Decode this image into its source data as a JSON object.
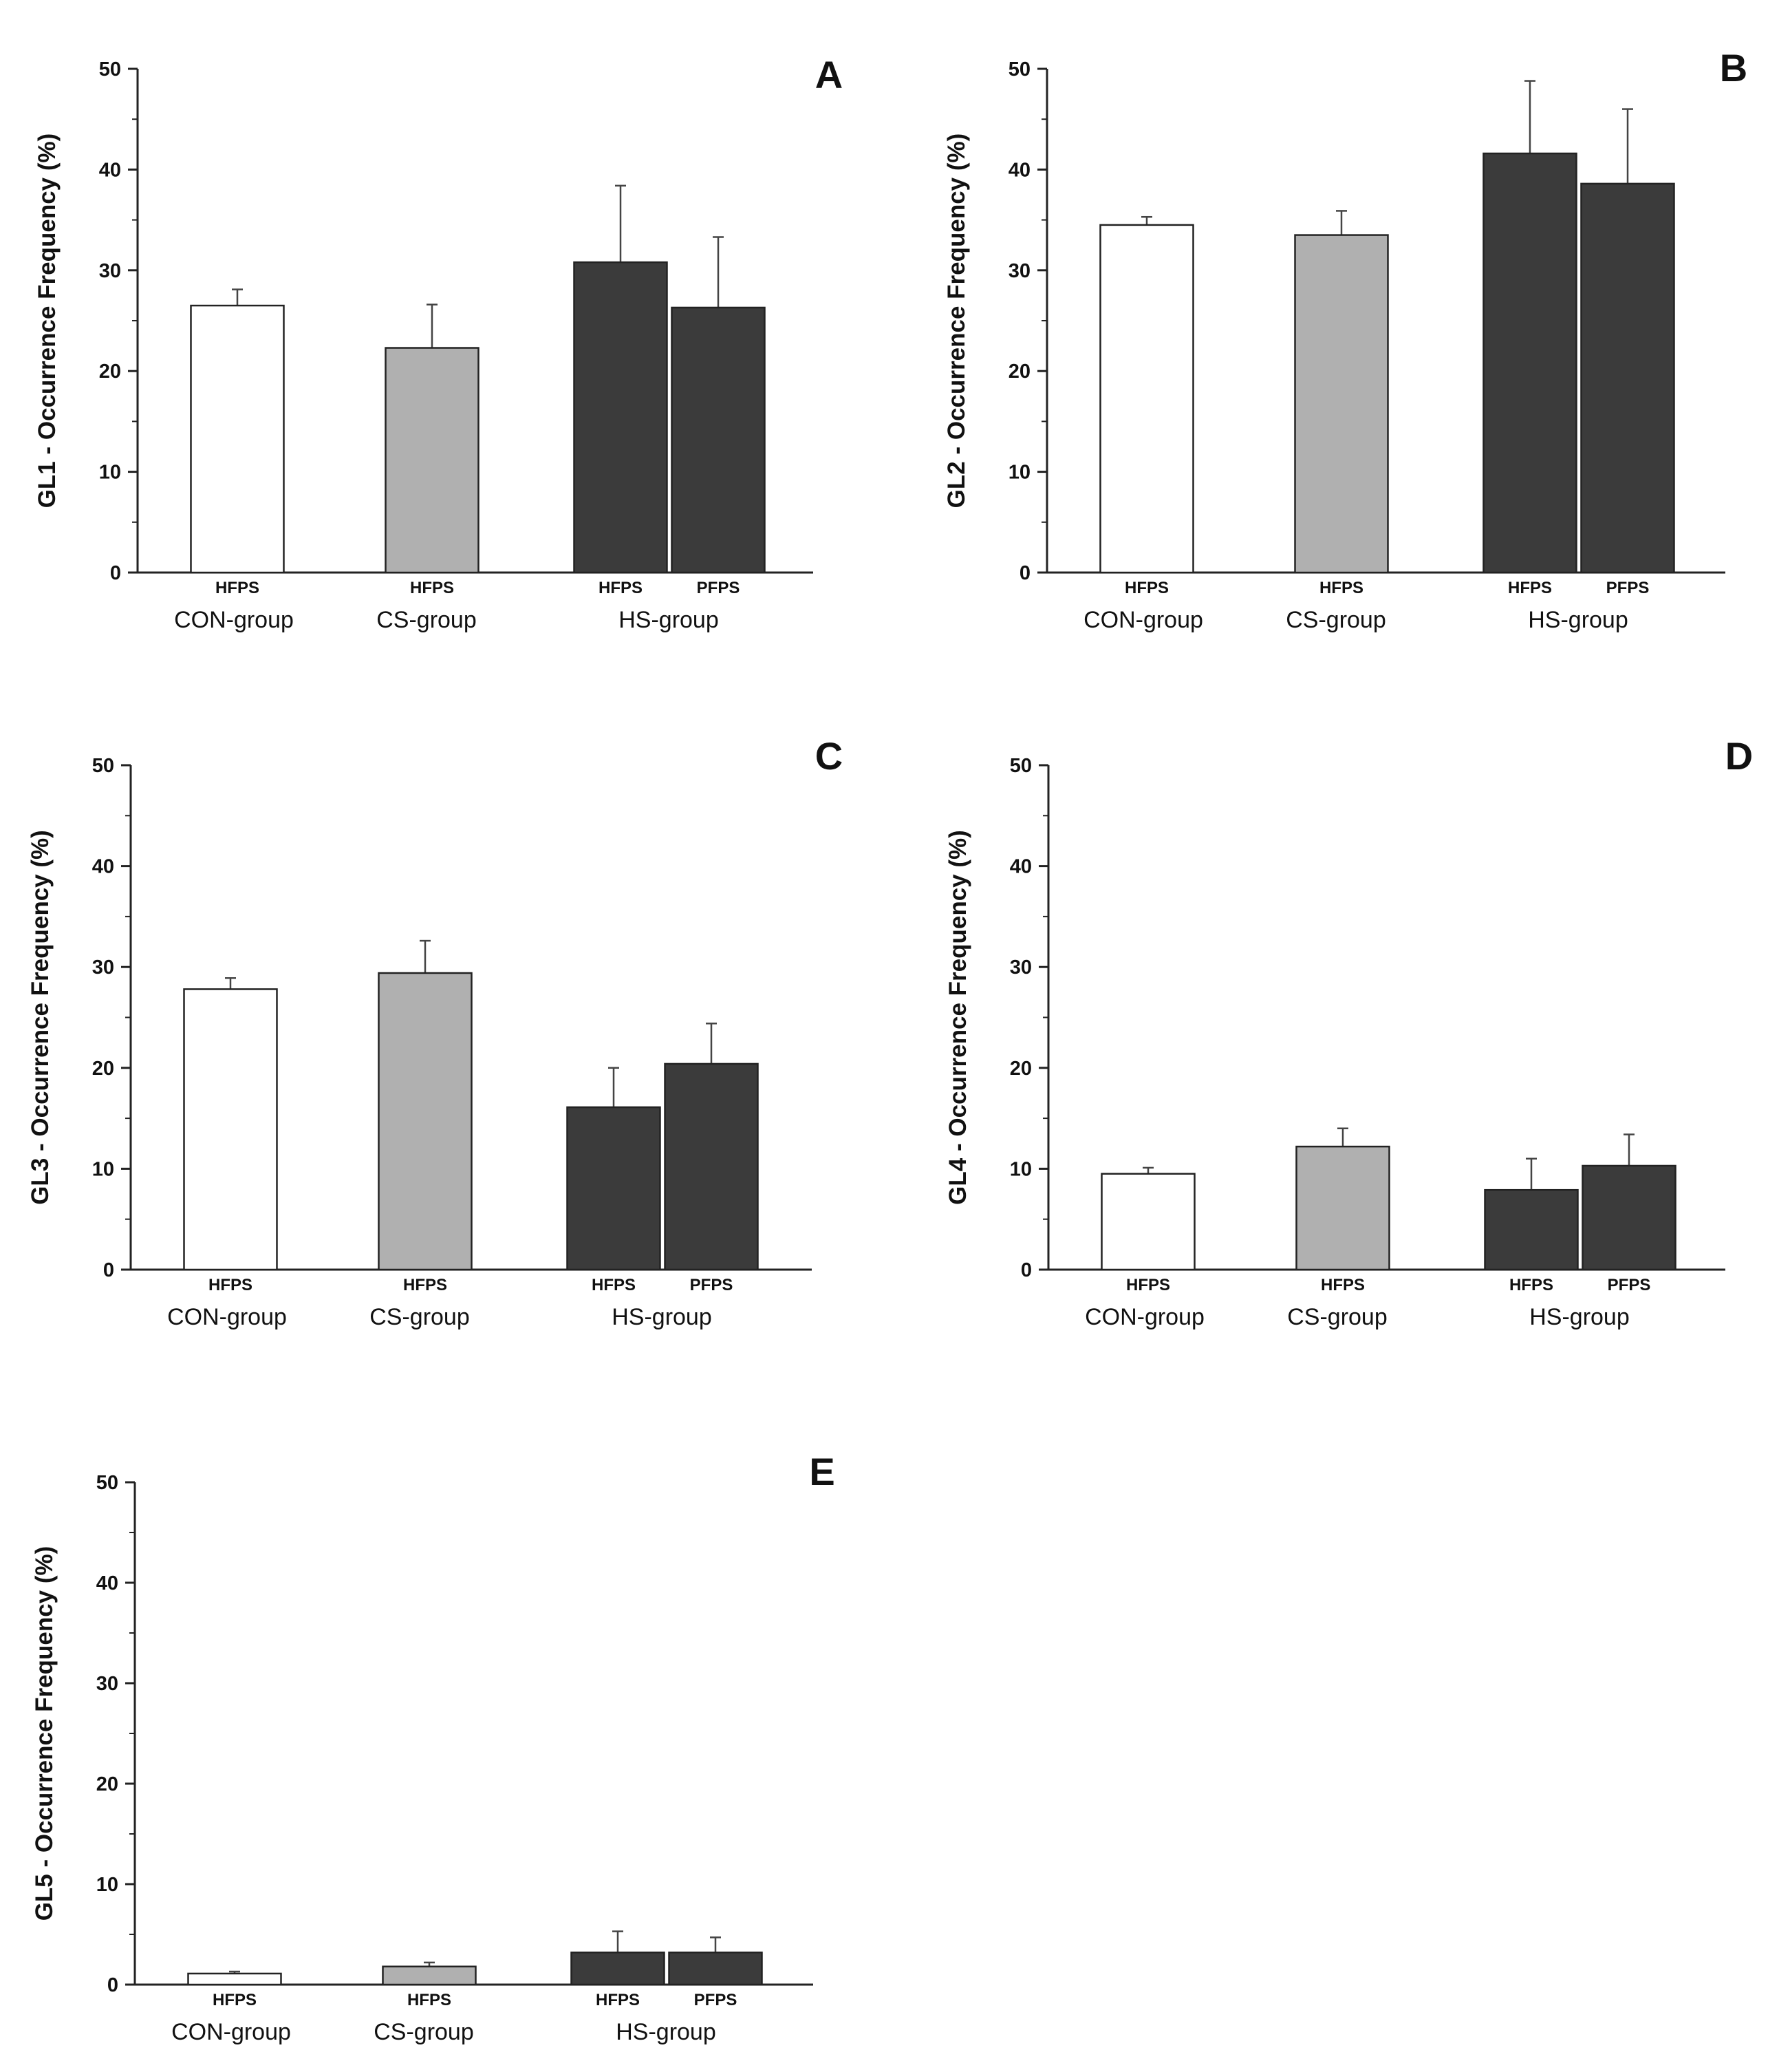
{
  "colors": {
    "CON-group": "#ffffff",
    "CS-group": "#b0b0b0",
    "HS-group": "#3b3b3b",
    "axis": "#222222",
    "bar_outline": "#222222",
    "error_bar": "#444444"
  },
  "chart_data": [
    {
      "panel": "A",
      "type": "bar",
      "ylabel": "GL1 - Occurrence Frequency (%)",
      "ylim": [
        0,
        50
      ],
      "yticks": [
        "0",
        "10",
        "20",
        "30",
        "40",
        "50"
      ],
      "groups": [
        "CON-group",
        "CS-group",
        "HS-group"
      ],
      "bars": [
        {
          "group": "CON-group",
          "label": "HFPS",
          "value": 26.5,
          "error": 1.6
        },
        {
          "group": "CS-group",
          "label": "HFPS",
          "value": 22.3,
          "error": 4.3
        },
        {
          "group": "HS-group",
          "label": "HFPS",
          "value": 30.8,
          "error": 7.6
        },
        {
          "group": "HS-group",
          "label": "PFPS",
          "value": 26.3,
          "error": 7.0
        }
      ]
    },
    {
      "panel": "B",
      "type": "bar",
      "ylabel": "GL2 - Occurrence Frequency (%)",
      "ylim": [
        0,
        50
      ],
      "yticks": [
        "0",
        "10",
        "20",
        "30",
        "40",
        "50"
      ],
      "groups": [
        "CON-group",
        "CS-group",
        "HS-group"
      ],
      "bars": [
        {
          "group": "CON-group",
          "label": "HFPS",
          "value": 34.5,
          "error": 0.8
        },
        {
          "group": "CS-group",
          "label": "HFPS",
          "value": 33.5,
          "error": 2.4
        },
        {
          "group": "HS-group",
          "label": "HFPS",
          "value": 41.6,
          "error": 7.2
        },
        {
          "group": "HS-group",
          "label": "PFPS",
          "value": 38.6,
          "error": 7.4
        }
      ]
    },
    {
      "panel": "C",
      "type": "bar",
      "ylabel": "GL3 - Occurrence Frequency (%)",
      "ylim": [
        0,
        50
      ],
      "yticks": [
        "0",
        "10",
        "20",
        "30",
        "40",
        "50"
      ],
      "groups": [
        "CON-group",
        "CS-group",
        "HS-group"
      ],
      "bars": [
        {
          "group": "CON-group",
          "label": "HFPS",
          "value": 27.8,
          "error": 1.1
        },
        {
          "group": "CS-group",
          "label": "HFPS",
          "value": 29.4,
          "error": 3.2
        },
        {
          "group": "HS-group",
          "label": "HFPS",
          "value": 16.1,
          "error": 3.9
        },
        {
          "group": "HS-group",
          "label": "PFPS",
          "value": 20.4,
          "error": 4.0
        }
      ]
    },
    {
      "panel": "D",
      "type": "bar",
      "ylabel": "GL4 - Occurrence Frequency (%)",
      "ylim": [
        0,
        50
      ],
      "yticks": [
        "0",
        "10",
        "20",
        "30",
        "40",
        "50"
      ],
      "groups": [
        "CON-group",
        "CS-group",
        "HS-group"
      ],
      "bars": [
        {
          "group": "CON-group",
          "label": "HFPS",
          "value": 9.5,
          "error": 0.6
        },
        {
          "group": "CS-group",
          "label": "HFPS",
          "value": 12.2,
          "error": 1.8
        },
        {
          "group": "HS-group",
          "label": "HFPS",
          "value": 7.9,
          "error": 3.1
        },
        {
          "group": "HS-group",
          "label": "PFPS",
          "value": 10.3,
          "error": 3.1
        }
      ]
    },
    {
      "panel": "E",
      "type": "bar",
      "ylabel": "GL5 - Occurrence Frequency (%)",
      "ylim": [
        0,
        50
      ],
      "yticks": [
        "0",
        "10",
        "20",
        "30",
        "40",
        "50"
      ],
      "groups": [
        "CON-group",
        "CS-group",
        "HS-group"
      ],
      "bars": [
        {
          "group": "CON-group",
          "label": "HFPS",
          "value": 1.1,
          "error": 0.2
        },
        {
          "group": "CS-group",
          "label": "HFPS",
          "value": 1.8,
          "error": 0.4
        },
        {
          "group": "HS-group",
          "label": "HFPS",
          "value": 3.2,
          "error": 2.1
        },
        {
          "group": "HS-group",
          "label": "PFPS",
          "value": 3.2,
          "error": 1.5
        }
      ]
    }
  ]
}
